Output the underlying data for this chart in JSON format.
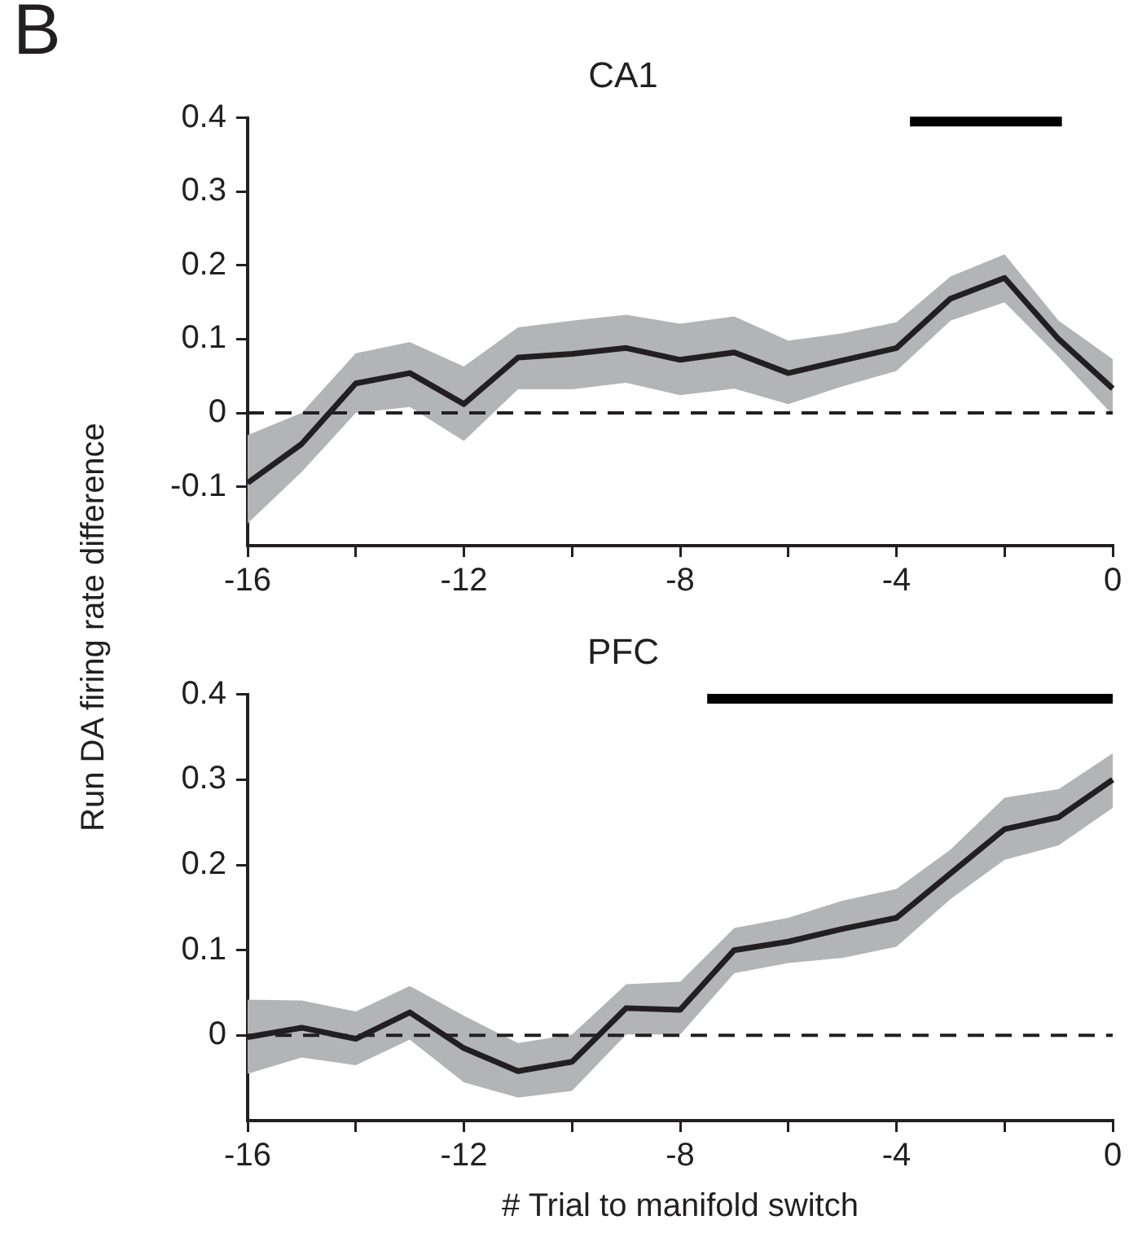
{
  "chart_data": [
    {
      "type": "line",
      "title": "CA1",
      "ylabel": "Run DA firing rate difference",
      "annotations": [
        "B"
      ],
      "x": [
        -16,
        -15,
        -14,
        -13,
        -12,
        -11,
        -10,
        -9,
        -8,
        -7,
        -6,
        -5,
        -4,
        -3,
        -2,
        -1,
        0
      ],
      "series": [
        {
          "color": "#231f20",
          "values": [
            -0.095,
            -0.042,
            0.04,
            0.054,
            0.012,
            0.075,
            0.08,
            0.088,
            0.072,
            0.082,
            0.054,
            0.071,
            0.088,
            0.155,
            0.183,
            0.1,
            0.033
          ],
          "lower": [
            -0.15,
            -0.08,
            0.0,
            0.008,
            -0.038,
            0.032,
            0.032,
            0.041,
            0.024,
            0.033,
            0.012,
            0.036,
            0.057,
            0.125,
            0.15,
            0.076,
            -0.003
          ],
          "upper": [
            -0.03,
            0.0,
            0.081,
            0.096,
            0.063,
            0.116,
            0.125,
            0.133,
            0.121,
            0.131,
            0.098,
            0.108,
            0.123,
            0.185,
            0.215,
            0.125,
            0.073
          ]
        },
        {
          "type": "line",
          "color": "#000000",
          "x": [
            -3.75,
            -0.94
          ],
          "values": [
            0.395,
            0.395
          ]
        }
      ],
      "xlim": [
        -16,
        0
      ],
      "xticks": [
        -16,
        {
          "value": -14,
          "label": null
        },
        -12,
        {
          "value": -10,
          "label": null
        },
        -8,
        {
          "value": -6,
          "label": null
        },
        -4,
        {
          "value": -2,
          "label": null
        },
        0
      ],
      "ylim": [
        -0.18,
        0.4
      ],
      "yticks": [
        -0.1,
        0,
        0.1,
        0.2,
        0.3,
        0.4
      ],
      "ref_lines": [
        {
          "axis": "y",
          "value": 0,
          "line_style": "dashed",
          "color": "#231f20"
        }
      ],
      "grid": false,
      "legend": false,
      "marker": "none",
      "line_style": "solid"
    },
    {
      "type": "line",
      "title": "PFC",
      "xlabel": "# Trial to manifold switch",
      "x": [
        -16,
        -15,
        -14,
        -13,
        -12,
        -11,
        -10,
        -9,
        -8,
        -7,
        -6,
        -5,
        -4,
        -3,
        -2,
        -1,
        0
      ],
      "series": [
        {
          "color": "#231f20",
          "values": [
            -0.002,
            0.009,
            -0.004,
            0.027,
            -0.015,
            -0.042,
            -0.031,
            0.032,
            0.03,
            0.1,
            0.11,
            0.125,
            0.138,
            0.19,
            0.242,
            0.256,
            0.3
          ],
          "lower": [
            -0.045,
            -0.026,
            -0.035,
            -0.005,
            -0.055,
            -0.073,
            -0.065,
            0.001,
            0.001,
            0.073,
            0.085,
            0.091,
            0.104,
            0.16,
            0.206,
            0.223,
            0.267
          ],
          "upper": [
            0.042,
            0.041,
            0.028,
            0.058,
            0.023,
            -0.009,
            0.001,
            0.06,
            0.063,
            0.126,
            0.138,
            0.158,
            0.172,
            0.218,
            0.279,
            0.289,
            0.331
          ]
        },
        {
          "type": "line",
          "color": "#000000",
          "x": [
            -7.5,
            0
          ],
          "values": [
            0.395,
            0.395
          ]
        }
      ],
      "xlim": [
        -16,
        0
      ],
      "xticks": [
        -16,
        {
          "value": -14,
          "label": null
        },
        -12,
        {
          "value": -10,
          "label": null
        },
        -8,
        {
          "value": -6,
          "label": null
        },
        -4,
        {
          "value": -2,
          "label": null
        },
        0
      ],
      "ylim": [
        -0.1,
        0.4
      ],
      "yticks": [
        0,
        0.1,
        0.2,
        0.3,
        0.4
      ],
      "ref_lines": [
        {
          "axis": "y",
          "value": 0,
          "line_style": "dashed",
          "color": "#231f20"
        }
      ],
      "grid": false,
      "legend": false,
      "marker": "none",
      "line_style": "solid"
    }
  ]
}
